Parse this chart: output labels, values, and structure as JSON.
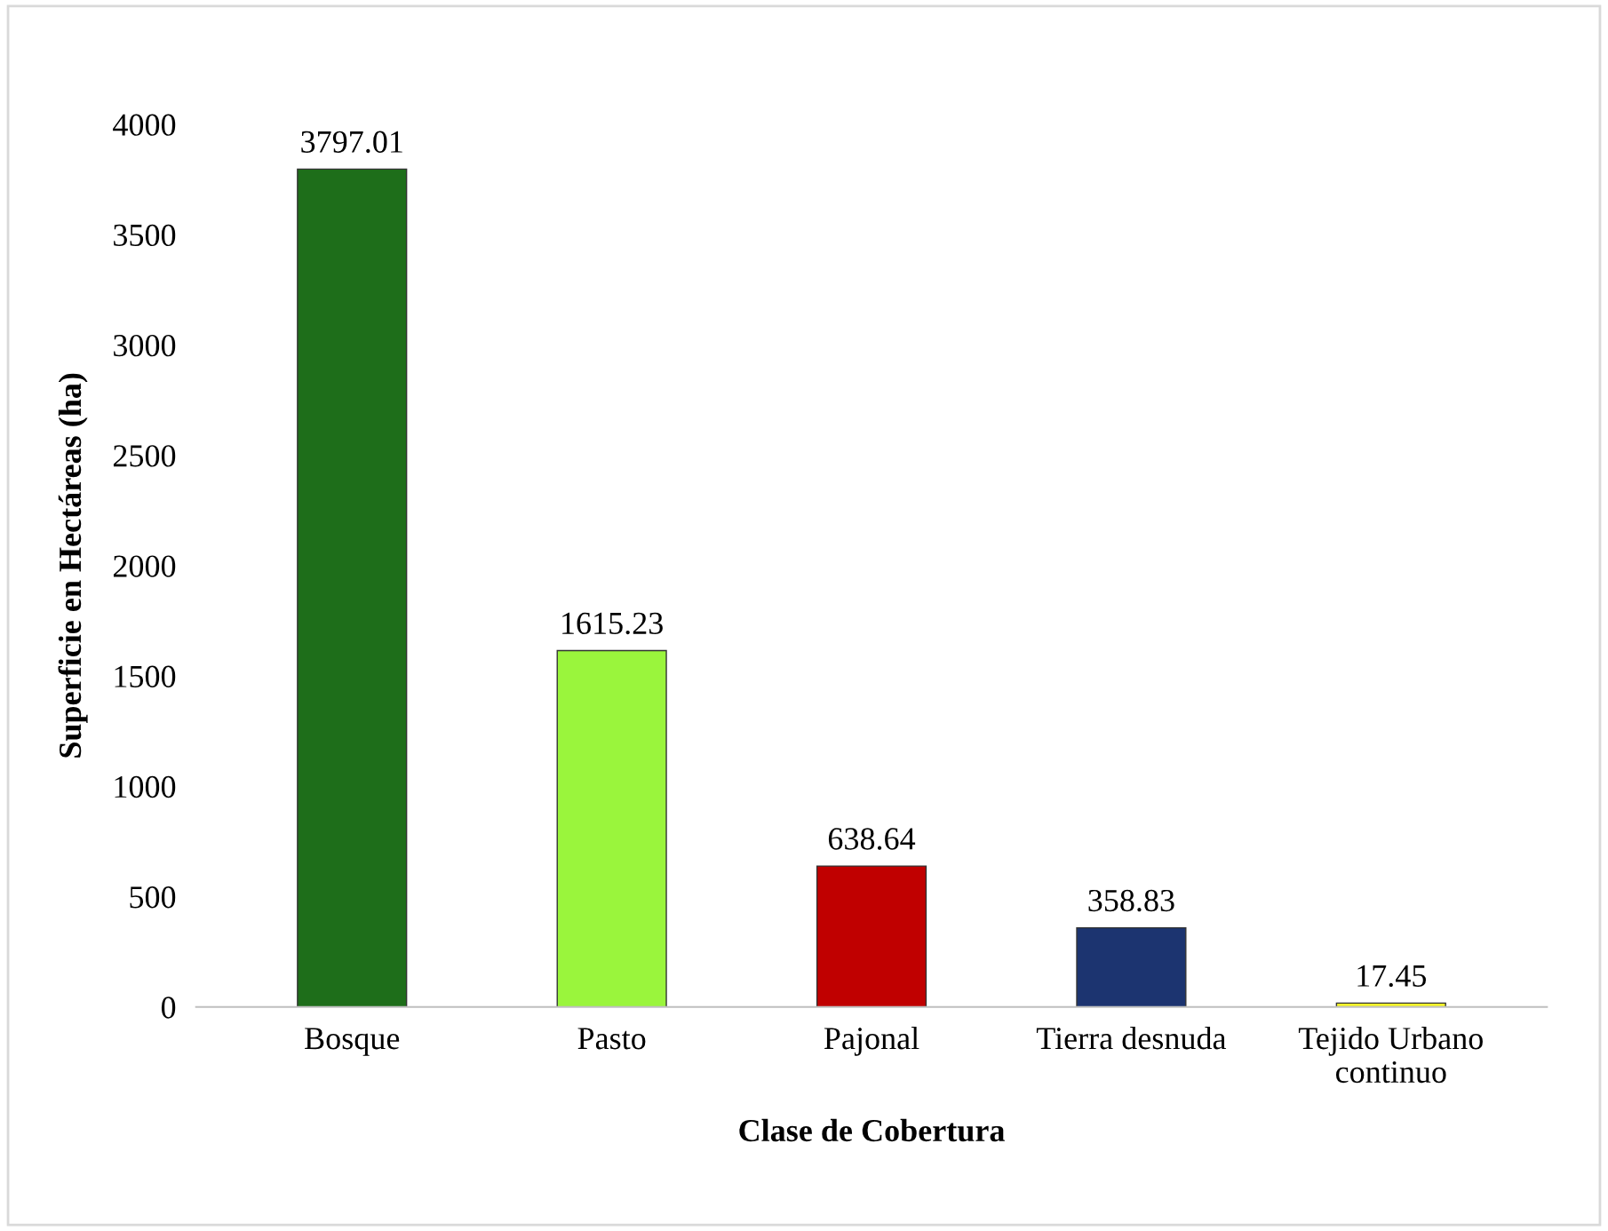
{
  "chart_data": {
    "type": "bar",
    "xlabel": "Clase de Cobertura",
    "ylabel": "Superficie en Hectáreas (ha)",
    "categories": [
      "Bosque",
      "Pasto",
      "Pajonal",
      "Tierra desnuda",
      "Tejido Urbano\ncontinuo"
    ],
    "values": [
      3797.01,
      1615.23,
      638.64,
      358.83,
      17.45
    ],
    "colors": [
      "#1e6e1a",
      "#9af53c",
      "#c00000",
      "#1c3470",
      "#f2f22a"
    ],
    "ylim": [
      0,
      4000
    ],
    "yticks": [
      0,
      500,
      1000,
      1500,
      2000,
      2500,
      3000,
      3500,
      4000
    ],
    "grid": false,
    "data_labels": true
  }
}
